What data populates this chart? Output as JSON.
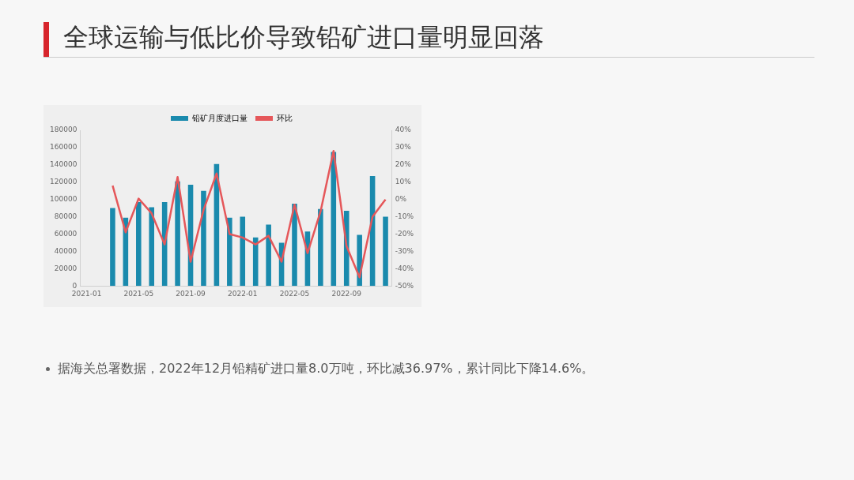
{
  "chart_data": {
    "type": "bar",
    "title": "全球运输与低比价导致铅矿进口量明显回落",
    "categories": [
      "2021-01",
      null,
      null,
      null,
      "2021-05",
      null,
      null,
      null,
      "2021-09",
      null,
      null,
      null,
      "2022-01",
      null,
      null,
      null,
      "2022-05",
      null,
      null,
      null,
      "2022-09",
      null,
      null,
      null
    ],
    "series": [
      {
        "name": "铅矿月度进口量",
        "color": "#1a8aad",
        "values": [
          null,
          null,
          90000,
          79000,
          97000,
          91000,
          97000,
          121000,
          117000,
          110000,
          141000,
          79000,
          80000,
          56000,
          71000,
          50000,
          95000,
          63000,
          89000,
          155000,
          87000,
          59000,
          127000,
          80000
        ]
      },
      {
        "name": "环比",
        "type": "line",
        "axis": "y2",
        "color": "#e5575a",
        "values": [
          null,
          null,
          8,
          -19,
          0.5,
          -8,
          -26,
          13,
          -36,
          -6,
          15,
          -20,
          -22,
          -26,
          -21,
          -36,
          -3,
          -31,
          -7,
          28,
          -27,
          -45,
          -10,
          0
        ]
      }
    ],
    "ylim": [
      0,
      180000
    ],
    "yticks": [
      0,
      20000,
      40000,
      60000,
      80000,
      100000,
      120000,
      140000,
      160000,
      180000
    ],
    "y2lim": [
      -50,
      40
    ],
    "y2ticks": [
      {
        "value": -50,
        "label": "-50%"
      },
      {
        "value": -40,
        "label": "-40%"
      },
      {
        "value": -30,
        "label": "-30%"
      },
      {
        "value": -20,
        "label": "-20%"
      },
      {
        "value": -10,
        "label": "-10%"
      },
      {
        "value": 0,
        "label": "0%"
      },
      {
        "value": 10,
        "label": "10%"
      },
      {
        "value": 20,
        "label": "20%"
      },
      {
        "value": 30,
        "label": "30%"
      },
      {
        "value": 40,
        "label": "40%"
      }
    ],
    "grid": false,
    "legend": "top",
    "marker": "none",
    "line_style": "solid",
    "annotations": [
      "据海关总署数据，2022年12月铅精矿进口量8.0万吨，环比减36.97%，累计同比下降14.6%。"
    ]
  }
}
